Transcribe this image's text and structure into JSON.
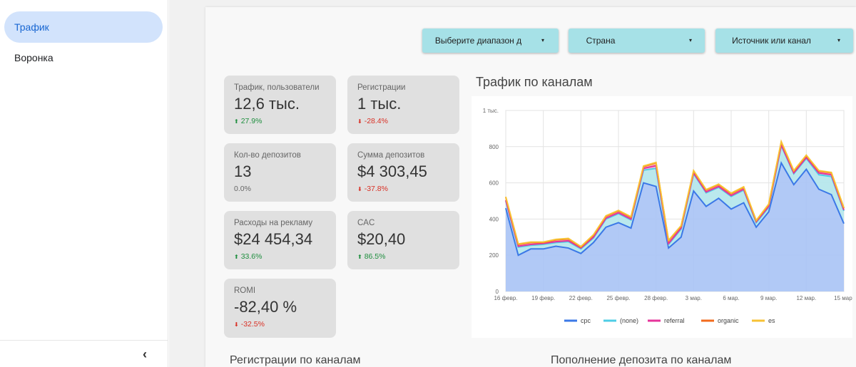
{
  "sidebar": {
    "items": [
      {
        "label": "Трафик",
        "active": true
      },
      {
        "label": "Воронка",
        "active": false
      }
    ],
    "collapse_icon": "chevron-left-icon",
    "collapse_glyph": "‹"
  },
  "filters": {
    "date_range": "Выберите диапазон д",
    "country": "Страна",
    "source": "Источник или канал",
    "caret": "▾"
  },
  "kpis": {
    "traffic": {
      "label": "Трафик, пользователи",
      "value": "12,6 тыс.",
      "delta": "27.9%",
      "arrow": "⬆"
    },
    "registrations": {
      "label": "Регистрации",
      "value": "1 тыс.",
      "delta": "-28.4%",
      "arrow": "⬇"
    },
    "deposits_count": {
      "label": "Кол-во депозитов",
      "value": "13",
      "delta": "0.0%",
      "arrow": ""
    },
    "deposits_sum": {
      "label": "Сумма депозитов",
      "value": "$4 303,45",
      "delta": "-37.8%",
      "arrow": "⬇"
    },
    "ad_spend": {
      "label": "Расходы на рекламу",
      "value": "$24 454,34",
      "delta": "33.6%",
      "arrow": "⬆"
    },
    "cac": {
      "label": "CAC",
      "value": "$20,40",
      "delta": "86.5%",
      "arrow": "⬆"
    },
    "romi": {
      "label": "ROMI",
      "value": "-82,40 %",
      "delta": "-32.5%",
      "arrow": "⬇"
    }
  },
  "bottom": {
    "left_title": "Регистрации по каналам",
    "right_title": "Пополнение депозита по каналам"
  },
  "colors": {
    "cpc": "#3b78e7",
    "none": "#4ecde6",
    "referral": "#e6339a",
    "organic": "#f26b1d",
    "es": "#f7c234"
  },
  "chart_data": {
    "type": "area",
    "title": "Трафик по каналам",
    "xlabel": "",
    "ylabel": "",
    "ylim": [
      0,
      1000
    ],
    "yticks": [
      "0",
      "200",
      "400",
      "600",
      "800",
      "1 тыс."
    ],
    "x": [
      "16 февр.",
      "17 февр.",
      "18 февр.",
      "19 февр.",
      "20 февр.",
      "21 февр.",
      "22 февр.",
      "23 февр.",
      "24 февр.",
      "25 февр.",
      "26 февр.",
      "27 февр.",
      "28 февр.",
      "1 мар.",
      "2 мар.",
      "3 мар.",
      "4 мар.",
      "5 мар.",
      "6 мар.",
      "7 мар.",
      "8 мар.",
      "9 мар.",
      "10 мар.",
      "11 мар.",
      "12 мар.",
      "13 мар.",
      "14 мар.",
      "15 мар."
    ],
    "xtick_labels": [
      "16 февр.",
      "19 февр.",
      "22 февр.",
      "25 февр.",
      "28 февр.",
      "3 мар.",
      "6 мар.",
      "9 мар.",
      "12 мар.",
      "15 мар."
    ],
    "xtick_index": [
      0,
      3,
      6,
      9,
      12,
      15,
      18,
      21,
      24,
      27
    ],
    "legend": "bottom",
    "series": [
      {
        "name": "cpc",
        "color": "#3b78e7",
        "values": [
          460,
          200,
          235,
          235,
          250,
          240,
          210,
          270,
          355,
          380,
          350,
          600,
          580,
          240,
          300,
          555,
          470,
          515,
          455,
          490,
          355,
          440,
          710,
          590,
          675,
          565,
          535,
          375
        ]
      },
      {
        "name": "(none)",
        "color": "#4ecde6",
        "values": [
          40,
          45,
          20,
          25,
          20,
          35,
          25,
          25,
          45,
          50,
          45,
          70,
          100,
          20,
          45,
          95,
          75,
          60,
          70,
          70,
          25,
          25,
          95,
          60,
          60,
          80,
          100,
          70
        ]
      },
      {
        "name": "referral",
        "color": "#e6339a",
        "values": [
          5,
          5,
          5,
          5,
          5,
          5,
          5,
          5,
          5,
          5,
          5,
          10,
          15,
          5,
          5,
          5,
          5,
          5,
          5,
          5,
          5,
          5,
          5,
          5,
          5,
          10,
          10,
          5
        ]
      },
      {
        "name": "organic",
        "color": "#f26b1d",
        "values": [
          15,
          10,
          10,
          5,
          10,
          10,
          5,
          10,
          10,
          10,
          10,
          10,
          15,
          15,
          10,
          10,
          10,
          10,
          10,
          10,
          5,
          10,
          15,
          10,
          10,
          10,
          10,
          10
        ]
      },
      {
        "name": "es",
        "color": "#f7c234",
        "values": [
          3,
          3,
          3,
          3,
          3,
          3,
          3,
          3,
          3,
          3,
          3,
          3,
          3,
          3,
          3,
          3,
          3,
          3,
          3,
          3,
          3,
          3,
          3,
          3,
          3,
          3,
          3,
          3
        ]
      }
    ]
  }
}
